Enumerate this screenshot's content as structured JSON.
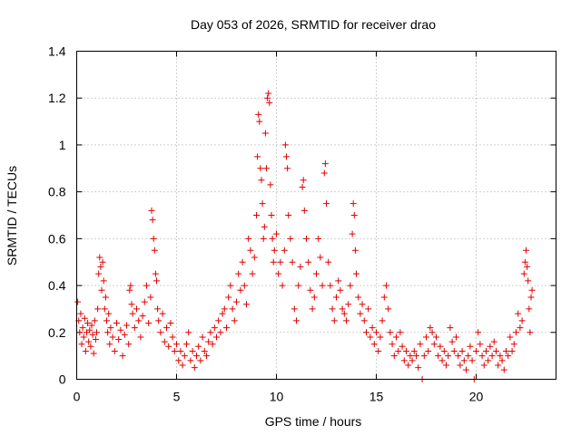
{
  "chart_data": {
    "type": "scatter",
    "title": "Day 053 of 2026, SRMTID for receiver drao",
    "xlabel": "GPS time / hours",
    "ylabel": "SRMTID / TECUs",
    "xlim": [
      0,
      24
    ],
    "ylim": [
      0,
      1.4
    ],
    "xticks": [
      0,
      5,
      10,
      15,
      20
    ],
    "yticks": [
      0,
      0.2,
      0.4,
      0.6,
      0.8,
      1,
      1.2,
      1.4
    ],
    "xtick_labels": [
      "0",
      "5",
      "10",
      "15",
      "20"
    ],
    "ytick_labels": [
      "0",
      "0.2",
      "0.4",
      "0.6",
      "0.8",
      "1",
      "1.2",
      "1.4"
    ],
    "grid": true,
    "marker": "+",
    "series": [
      {
        "name": "SRMTID",
        "color": "#e00000",
        "points": [
          [
            0.05,
            0.33
          ],
          [
            0.1,
            0.25
          ],
          [
            0.15,
            0.2
          ],
          [
            0.2,
            0.28
          ],
          [
            0.25,
            0.15
          ],
          [
            0.3,
            0.22
          ],
          [
            0.35,
            0.18
          ],
          [
            0.4,
            0.26
          ],
          [
            0.45,
            0.12
          ],
          [
            0.5,
            0.2
          ],
          [
            0.55,
            0.24
          ],
          [
            0.6,
            0.16
          ],
          [
            0.65,
            0.21
          ],
          [
            0.7,
            0.14
          ],
          [
            0.75,
            0.23
          ],
          [
            0.8,
            0.19
          ],
          [
            0.85,
            0.11
          ],
          [
            0.9,
            0.25
          ],
          [
            0.95,
            0.17
          ],
          [
            1.0,
            0.2
          ],
          [
            1.05,
            0.3
          ],
          [
            1.1,
            0.45
          ],
          [
            1.15,
            0.52
          ],
          [
            1.2,
            0.48
          ],
          [
            1.25,
            0.38
          ],
          [
            1.3,
            0.5
          ],
          [
            1.35,
            0.42
          ],
          [
            1.4,
            0.3
          ],
          [
            1.45,
            0.35
          ],
          [
            1.5,
            0.25
          ],
          [
            1.55,
            0.2
          ],
          [
            1.6,
            0.28
          ],
          [
            1.65,
            0.15
          ],
          [
            1.7,
            0.22
          ],
          [
            1.8,
            0.18
          ],
          [
            1.9,
            0.12
          ],
          [
            2.0,
            0.24
          ],
          [
            2.1,
            0.17
          ],
          [
            2.2,
            0.21
          ],
          [
            2.3,
            0.1
          ],
          [
            2.4,
            0.19
          ],
          [
            2.5,
            0.23
          ],
          [
            2.6,
            0.15
          ],
          [
            2.65,
            0.38
          ],
          [
            2.7,
            0.4
          ],
          [
            2.75,
            0.32
          ],
          [
            2.8,
            0.28
          ],
          [
            2.9,
            0.22
          ],
          [
            3.0,
            0.3
          ],
          [
            3.1,
            0.25
          ],
          [
            3.2,
            0.18
          ],
          [
            3.3,
            0.27
          ],
          [
            3.4,
            0.33
          ],
          [
            3.5,
            0.4
          ],
          [
            3.6,
            0.24
          ],
          [
            3.7,
            0.35
          ],
          [
            3.75,
            0.72
          ],
          [
            3.8,
            0.68
          ],
          [
            3.85,
            0.6
          ],
          [
            3.9,
            0.55
          ],
          [
            3.95,
            0.45
          ],
          [
            4.0,
            0.42
          ],
          [
            4.05,
            0.3
          ],
          [
            4.1,
            0.25
          ],
          [
            4.2,
            0.2
          ],
          [
            4.3,
            0.28
          ],
          [
            4.4,
            0.16
          ],
          [
            4.5,
            0.22
          ],
          [
            4.6,
            0.14
          ],
          [
            4.7,
            0.24
          ],
          [
            4.8,
            0.18
          ],
          [
            4.9,
            0.12
          ],
          [
            5.0,
            0.15
          ],
          [
            5.1,
            0.08
          ],
          [
            5.2,
            0.12
          ],
          [
            5.3,
            0.06
          ],
          [
            5.4,
            0.1
          ],
          [
            5.5,
            0.15
          ],
          [
            5.6,
            0.2
          ],
          [
            5.7,
            0.08
          ],
          [
            5.8,
            0.12
          ],
          [
            5.9,
            0.05
          ],
          [
            6.0,
            0.1
          ],
          [
            6.1,
            0.14
          ],
          [
            6.2,
            0.08
          ],
          [
            6.3,
            0.18
          ],
          [
            6.4,
            0.12
          ],
          [
            6.5,
            0.1
          ],
          [
            6.6,
            0.16
          ],
          [
            6.7,
            0.2
          ],
          [
            6.8,
            0.15
          ],
          [
            6.9,
            0.22
          ],
          [
            7.0,
            0.18
          ],
          [
            7.1,
            0.25
          ],
          [
            7.2,
            0.2
          ],
          [
            7.3,
            0.28
          ],
          [
            7.4,
            0.3
          ],
          [
            7.5,
            0.22
          ],
          [
            7.6,
            0.35
          ],
          [
            7.7,
            0.4
          ],
          [
            7.8,
            0.3
          ],
          [
            7.9,
            0.25
          ],
          [
            8.0,
            0.33
          ],
          [
            8.1,
            0.45
          ],
          [
            8.2,
            0.38
          ],
          [
            8.3,
            0.5
          ],
          [
            8.4,
            0.4
          ],
          [
            8.5,
            0.32
          ],
          [
            8.6,
            0.6
          ],
          [
            8.7,
            0.55
          ],
          [
            8.8,
            0.45
          ],
          [
            8.9,
            0.52
          ],
          [
            9.0,
            0.7
          ],
          [
            9.05,
            0.95
          ],
          [
            9.1,
            1.13
          ],
          [
            9.15,
            1.1
          ],
          [
            9.2,
            0.9
          ],
          [
            9.25,
            0.85
          ],
          [
            9.3,
            0.75
          ],
          [
            9.35,
            0.6
          ],
          [
            9.4,
            0.65
          ],
          [
            9.45,
            1.05
          ],
          [
            9.5,
            0.9
          ],
          [
            9.55,
            1.2
          ],
          [
            9.6,
            1.22
          ],
          [
            9.65,
            1.18
          ],
          [
            9.7,
            0.83
          ],
          [
            9.75,
            0.7
          ],
          [
            9.8,
            0.6
          ],
          [
            9.85,
            0.5
          ],
          [
            9.9,
            0.55
          ],
          [
            10.0,
            0.62
          ],
          [
            10.1,
            0.45
          ],
          [
            10.2,
            0.5
          ],
          [
            10.3,
            0.4
          ],
          [
            10.4,
            0.55
          ],
          [
            10.45,
            1.0
          ],
          [
            10.5,
            0.95
          ],
          [
            10.55,
            0.9
          ],
          [
            10.6,
            0.7
          ],
          [
            10.7,
            0.6
          ],
          [
            10.8,
            0.5
          ],
          [
            10.9,
            0.3
          ],
          [
            11.0,
            0.25
          ],
          [
            11.1,
            0.4
          ],
          [
            11.2,
            0.48
          ],
          [
            11.3,
            0.82
          ],
          [
            11.35,
            0.85
          ],
          [
            11.4,
            0.72
          ],
          [
            11.5,
            0.6
          ],
          [
            11.6,
            0.5
          ],
          [
            11.7,
            0.38
          ],
          [
            11.8,
            0.3
          ],
          [
            11.9,
            0.35
          ],
          [
            12.0,
            0.45
          ],
          [
            12.1,
            0.6
          ],
          [
            12.2,
            0.52
          ],
          [
            12.3,
            0.4
          ],
          [
            12.4,
            0.88
          ],
          [
            12.45,
            0.92
          ],
          [
            12.5,
            0.75
          ],
          [
            12.6,
            0.5
          ],
          [
            12.7,
            0.4
          ],
          [
            12.8,
            0.3
          ],
          [
            12.9,
            0.25
          ],
          [
            13.0,
            0.35
          ],
          [
            13.1,
            0.42
          ],
          [
            13.2,
            0.38
          ],
          [
            13.3,
            0.3
          ],
          [
            13.4,
            0.28
          ],
          [
            13.5,
            0.25
          ],
          [
            13.6,
            0.32
          ],
          [
            13.7,
            0.4
          ],
          [
            13.8,
            0.62
          ],
          [
            13.85,
            0.75
          ],
          [
            13.9,
            0.7
          ],
          [
            13.95,
            0.55
          ],
          [
            14.0,
            0.45
          ],
          [
            14.1,
            0.35
          ],
          [
            14.2,
            0.28
          ],
          [
            14.3,
            0.32
          ],
          [
            14.4,
            0.25
          ],
          [
            14.5,
            0.2
          ],
          [
            14.6,
            0.3
          ],
          [
            14.7,
            0.18
          ],
          [
            14.8,
            0.22
          ],
          [
            14.9,
            0.15
          ],
          [
            15.0,
            0.2
          ],
          [
            15.1,
            0.12
          ],
          [
            15.2,
            0.18
          ],
          [
            15.3,
            0.25
          ],
          [
            15.4,
            0.35
          ],
          [
            15.5,
            0.4
          ],
          [
            15.6,
            0.3
          ],
          [
            15.7,
            0.2
          ],
          [
            15.8,
            0.15
          ],
          [
            15.9,
            0.1
          ],
          [
            16.0,
            0.18
          ],
          [
            16.1,
            0.12
          ],
          [
            16.2,
            0.2
          ],
          [
            16.3,
            0.14
          ],
          [
            16.4,
            0.08
          ],
          [
            16.5,
            0.12
          ],
          [
            16.6,
            0.06
          ],
          [
            16.7,
            0.1
          ],
          [
            16.8,
            0.08
          ],
          [
            16.9,
            0.12
          ],
          [
            17.0,
            0.1
          ],
          [
            17.1,
            0.05
          ],
          [
            17.2,
            0.15
          ],
          [
            17.3,
            0.0
          ],
          [
            17.4,
            0.1
          ],
          [
            17.5,
            0.18
          ],
          [
            17.6,
            0.12
          ],
          [
            17.7,
            0.22
          ],
          [
            17.8,
            0.2
          ],
          [
            17.9,
            0.15
          ],
          [
            18.0,
            0.18
          ],
          [
            18.1,
            0.1
          ],
          [
            18.2,
            0.14
          ],
          [
            18.3,
            0.08
          ],
          [
            18.4,
            0.12
          ],
          [
            18.5,
            0.06
          ],
          [
            18.6,
            0.1
          ],
          [
            18.7,
            0.22
          ],
          [
            18.8,
            0.16
          ],
          [
            18.9,
            0.12
          ],
          [
            19.0,
            0.18
          ],
          [
            19.1,
            0.1
          ],
          [
            19.2,
            0.06
          ],
          [
            19.3,
            0.12
          ],
          [
            19.4,
            0.08
          ],
          [
            19.5,
            0.04
          ],
          [
            19.6,
            0.1
          ],
          [
            19.7,
            0.14
          ],
          [
            19.8,
            0.08
          ],
          [
            19.9,
            0.0
          ],
          [
            20.0,
            0.12
          ],
          [
            20.1,
            0.2
          ],
          [
            20.2,
            0.15
          ],
          [
            20.3,
            0.1
          ],
          [
            20.4,
            0.06
          ],
          [
            20.5,
            0.12
          ],
          [
            20.6,
            0.08
          ],
          [
            20.7,
            0.14
          ],
          [
            20.8,
            0.1
          ],
          [
            20.9,
            0.16
          ],
          [
            21.0,
            0.12
          ],
          [
            21.1,
            0.06
          ],
          [
            21.2,
            0.1
          ],
          [
            21.3,
            0.08
          ],
          [
            21.4,
            0.04
          ],
          [
            21.5,
            0.12
          ],
          [
            21.6,
            0.1
          ],
          [
            21.7,
            0.18
          ],
          [
            21.8,
            0.12
          ],
          [
            21.9,
            0.15
          ],
          [
            22.0,
            0.2
          ],
          [
            22.1,
            0.28
          ],
          [
            22.2,
            0.22
          ],
          [
            22.3,
            0.25
          ],
          [
            22.4,
            0.45
          ],
          [
            22.45,
            0.5
          ],
          [
            22.5,
            0.55
          ],
          [
            22.55,
            0.48
          ],
          [
            22.6,
            0.42
          ],
          [
            22.65,
            0.3
          ],
          [
            22.7,
            0.2
          ],
          [
            22.75,
            0.35
          ],
          [
            22.8,
            0.38
          ]
        ]
      }
    ]
  }
}
